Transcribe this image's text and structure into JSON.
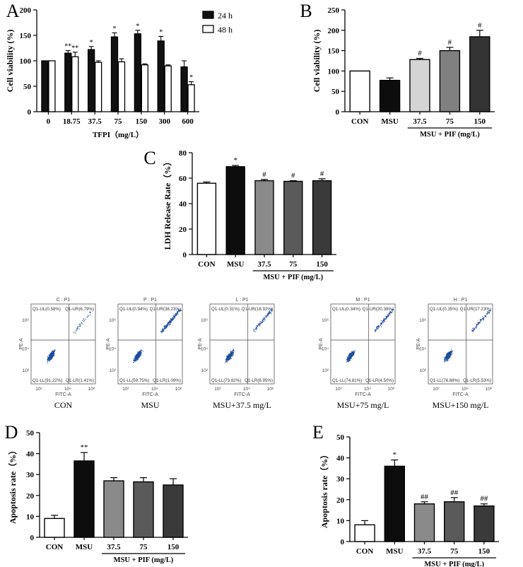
{
  "chart_data": [
    {
      "panel": "A",
      "type": "bar",
      "title": "",
      "xlabel": "TFPI（mg/L）",
      "ylabel": "Cell viability (%)",
      "ylim": [
        0,
        200
      ],
      "yticks": [
        0,
        50,
        100,
        150,
        200
      ],
      "categories": [
        "0",
        "18.75",
        "37.5",
        "75",
        "150",
        "300",
        "600"
      ],
      "legend": [
        "24 h",
        "48 h"
      ],
      "legend_position": "top-right",
      "series": [
        {
          "name": "24 h",
          "color": "#111111",
          "values": [
            100,
            115,
            122,
            147,
            153,
            139,
            88
          ],
          "errors": [
            0,
            5,
            6,
            8,
            7,
            9,
            12
          ],
          "marks": [
            "",
            "**",
            "*",
            "*",
            "*",
            "*",
            ""
          ]
        },
        {
          "name": "48 h",
          "color": "#ffffff",
          "values": [
            100,
            108,
            97,
            98,
            92,
            90,
            53
          ],
          "errors": [
            0,
            9,
            3,
            6,
            2,
            2,
            6
          ],
          "marks": [
            "",
            "**",
            "",
            "",
            "",
            "",
            "*"
          ]
        }
      ]
    },
    {
      "panel": "B",
      "type": "bar",
      "ylabel": "Cell viability (%)",
      "ylim": [
        0,
        250
      ],
      "yticks": [
        0,
        50,
        100,
        150,
        200,
        250
      ],
      "categories": [
        "CON",
        "MSU",
        "37.5",
        "75",
        "150"
      ],
      "group_label": "MSU + PIF (mg/L)",
      "values": [
        100,
        77,
        128,
        150,
        184
      ],
      "errors": [
        0,
        6,
        3,
        8,
        16
      ],
      "colors": [
        "#ffffff",
        "#0d0d0d",
        "#d4d4d4",
        "#808080",
        "#333333"
      ],
      "marks": [
        "",
        "",
        "#",
        "#",
        "#"
      ]
    },
    {
      "panel": "C",
      "type": "bar",
      "ylabel": "LDH Release Rate（%）",
      "ylim": [
        0,
        80
      ],
      "yticks": [
        0,
        20,
        40,
        60,
        80
      ],
      "categories": [
        "CON",
        "MSU",
        "37.5",
        "75",
        "150"
      ],
      "group_label": "MSU + PIF (mg/L)",
      "values": [
        56,
        69,
        58,
        57.5,
        58
      ],
      "errors": [
        1,
        1,
        1,
        0.5,
        1.5
      ],
      "colors": [
        "#ffffff",
        "#0d0d0d",
        "#8a8a8a",
        "#5a5a5a",
        "#3a3a3a"
      ],
      "marks": [
        "",
        "*",
        "#",
        "#",
        "#"
      ]
    },
    {
      "panel": "D",
      "type": "bar",
      "ylabel": "Apoptosis rate（%）",
      "ylim": [
        0,
        50
      ],
      "yticks": [
        0,
        10,
        20,
        30,
        40,
        50
      ],
      "categories": [
        "CON",
        "MSU",
        "37.5",
        "75",
        "150"
      ],
      "group_label": "MSU + PIF (mg/L)",
      "values": [
        9,
        36.5,
        27,
        26.5,
        25
      ],
      "errors": [
        1.5,
        4,
        1.5,
        2,
        3
      ],
      "colors": [
        "#ffffff",
        "#0d0d0d",
        "#8a8a8a",
        "#5a5a5a",
        "#3a3a3a"
      ],
      "marks": [
        "",
        "**",
        "",
        "",
        ""
      ]
    },
    {
      "panel": "E",
      "type": "bar",
      "ylabel": "Apoptosis rate（%）",
      "ylim": [
        0,
        50
      ],
      "yticks": [
        0,
        10,
        20,
        30,
        40,
        50
      ],
      "categories": [
        "CON",
        "MSU",
        "37.5",
        "75",
        "150"
      ],
      "group_label": "MSU + PIF (mg/L)",
      "values": [
        8,
        36,
        18,
        19,
        17
      ],
      "errors": [
        2,
        3,
        1,
        2,
        1
      ],
      "colors": [
        "#ffffff",
        "#0d0d0d",
        "#8a8a8a",
        "#5a5a5a",
        "#3a3a3a"
      ],
      "marks": [
        "",
        "*",
        "##",
        "##",
        "##"
      ]
    },
    {
      "panel": "flow",
      "type": "scatter",
      "axis": {
        "x": "FITC-A",
        "y": "PE-A",
        "ticks": [
          "10²",
          "10⁴",
          "10⁶"
        ]
      },
      "plots": [
        {
          "title": "C : P1",
          "caption": "CON",
          "ul": "Q1-UL(0.58%)",
          "ur": "Q1-UR(6.79%)",
          "ll": "Q1-LL(91.22%)",
          "lr": "Q1-LR(1.41%)"
        },
        {
          "title": "P : P1",
          "caption": "MSU",
          "ul": "Q1-UL(0.94%)",
          "ur": "Q1-UR(38.23%)",
          "ll": "Q1-LL(59.75%)",
          "lr": "Q1-LR(1.09%)"
        },
        {
          "title": "L : P1",
          "caption": "MSU+37.5 mg/L",
          "ul": "Q1-UL(0.31%)",
          "ur": "Q1-UR(18.92%)",
          "ll": "Q1-LL(73.82%)",
          "lr": "Q1-LR(6.95%)"
        },
        {
          "title": "M : P1",
          "caption": "MSU+75 mg/L",
          "ul": "Q1-UL(0.34%)",
          "ur": "Q1-UR(20.36%)",
          "ll": "Q1-LL(74.81%)",
          "lr": "Q1-LR(4.50%)"
        },
        {
          "title": "H : P1",
          "caption": "MSU+150 mg/L",
          "ul": "Q1-UL(0.35%)",
          "ur": "Q1-UR(17.23%)",
          "ll": "Q1-LL(76.88%)",
          "lr": "Q1-LR(5.53%)"
        }
      ]
    }
  ]
}
